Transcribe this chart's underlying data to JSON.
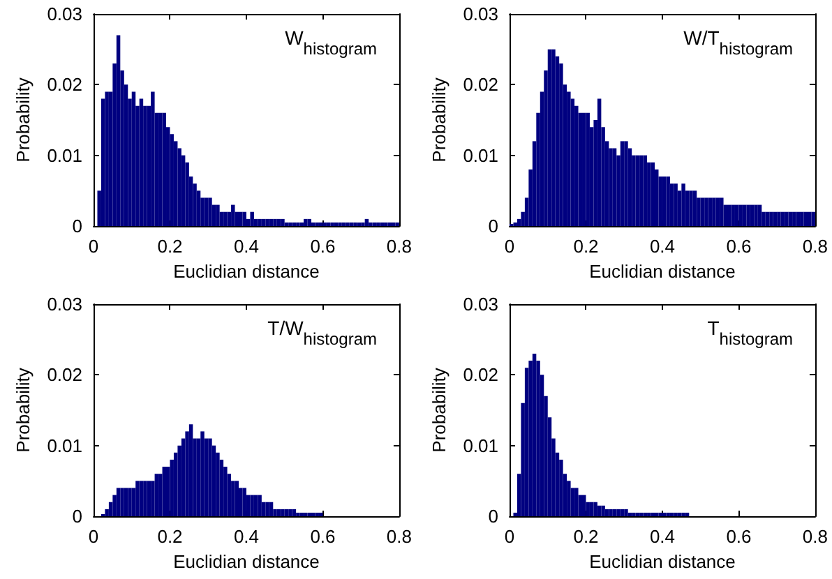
{
  "chart_data": [
    {
      "type": "histogram",
      "xlabel": "Euclidian distance",
      "ylabel": "Probability",
      "annotations": [
        "W$_{histogram}$"
      ],
      "color": "#000080",
      "xlim": [
        0,
        0.8
      ],
      "ylim": [
        0,
        0.03
      ],
      "xticks": [
        0,
        0.2,
        0.4,
        0.6,
        0.8
      ],
      "yticks": [
        0,
        0.01,
        0.02,
        0.03
      ],
      "bins": [
        0,
        0.01,
        0.02,
        0.03,
        0.04,
        0.05,
        0.06,
        0.07,
        0.08,
        0.09,
        0.1,
        0.11,
        0.12,
        0.13,
        0.14,
        0.15,
        0.16,
        0.17,
        0.18,
        0.19,
        0.2,
        0.21,
        0.22,
        0.23,
        0.24,
        0.25,
        0.26,
        0.27,
        0.28,
        0.29,
        0.3,
        0.31,
        0.32,
        0.33,
        0.34,
        0.35,
        0.36,
        0.37,
        0.38,
        0.39,
        0.4,
        0.41,
        0.42,
        0.43,
        0.44,
        0.45,
        0.46,
        0.47,
        0.48,
        0.49,
        0.5,
        0.51,
        0.52,
        0.53,
        0.54,
        0.55,
        0.56,
        0.57,
        0.58,
        0.59,
        0.6,
        0.61,
        0.62,
        0.63,
        0.64,
        0.65,
        0.66,
        0.67,
        0.68,
        0.69,
        0.7,
        0.71,
        0.72,
        0.73,
        0.74,
        0.75,
        0.76,
        0.77,
        0.78,
        0.79,
        0.8
      ],
      "values": [
        0,
        0.005,
        0.018,
        0.019,
        0.019,
        0.023,
        0.027,
        0.022,
        0.02,
        0.018,
        0.019,
        0.017,
        0.018,
        0.017,
        0.017,
        0.019,
        0.016,
        0.016,
        0.016,
        0.014,
        0.013,
        0.012,
        0.011,
        0.01,
        0.009,
        0.007,
        0.006,
        0.005,
        0.004,
        0.004,
        0.004,
        0.003,
        0.003,
        0.002,
        0.002,
        0.002,
        0.003,
        0.002,
        0.002,
        0.002,
        0.001,
        0.002,
        0.001,
        0.001,
        0.001,
        0.001,
        0.001,
        0.001,
        0.001,
        0.001,
        0.0005,
        0.0005,
        0.0005,
        0.0005,
        0.0005,
        0.001,
        0.001,
        0.0005,
        0.0005,
        0.0005,
        0.0005,
        0.0005,
        0.0005,
        0.0005,
        0.0005,
        0.0005,
        0.0005,
        0.0005,
        0.0005,
        0.0005,
        0.0005,
        0.001,
        0.0005,
        0.0005,
        0.0005,
        0.0005,
        0.0005,
        0.0005,
        0.0005,
        0.0005
      ]
    },
    {
      "type": "histogram",
      "xlabel": "Euclidian distance",
      "ylabel": "Probability",
      "annotations": [
        "W/T$_{histogram}$"
      ],
      "color": "#000080",
      "xlim": [
        0,
        0.8
      ],
      "ylim": [
        0,
        0.03
      ],
      "xticks": [
        0,
        0.2,
        0.4,
        0.6,
        0.8
      ],
      "yticks": [
        0,
        0.01,
        0.02,
        0.03
      ],
      "bins": [
        0,
        0.01,
        0.02,
        0.03,
        0.04,
        0.05,
        0.06,
        0.07,
        0.08,
        0.09,
        0.1,
        0.11,
        0.12,
        0.13,
        0.14,
        0.15,
        0.16,
        0.17,
        0.18,
        0.19,
        0.2,
        0.21,
        0.22,
        0.23,
        0.24,
        0.25,
        0.26,
        0.27,
        0.28,
        0.29,
        0.3,
        0.31,
        0.32,
        0.33,
        0.34,
        0.35,
        0.36,
        0.37,
        0.38,
        0.39,
        0.4,
        0.41,
        0.42,
        0.43,
        0.44,
        0.45,
        0.46,
        0.47,
        0.48,
        0.49,
        0.5,
        0.51,
        0.52,
        0.53,
        0.54,
        0.55,
        0.56,
        0.57,
        0.58,
        0.59,
        0.6,
        0.61,
        0.62,
        0.63,
        0.64,
        0.65,
        0.66,
        0.67,
        0.68,
        0.69,
        0.7,
        0.71,
        0.72,
        0.73,
        0.74,
        0.75,
        0.76,
        0.77,
        0.78,
        0.79,
        0.8
      ],
      "values": [
        0.0003,
        0.0005,
        0.001,
        0.002,
        0.004,
        0.008,
        0.012,
        0.016,
        0.019,
        0.022,
        0.025,
        0.025,
        0.024,
        0.023,
        0.02,
        0.019,
        0.018,
        0.017,
        0.016,
        0.016,
        0.016,
        0.014,
        0.015,
        0.018,
        0.014,
        0.012,
        0.011,
        0.011,
        0.01,
        0.012,
        0.012,
        0.011,
        0.01,
        0.01,
        0.01,
        0.01,
        0.009,
        0.009,
        0.008,
        0.007,
        0.007,
        0.007,
        0.006,
        0.006,
        0.005,
        0.006,
        0.005,
        0.005,
        0.005,
        0.004,
        0.004,
        0.004,
        0.004,
        0.004,
        0.004,
        0.004,
        0.003,
        0.003,
        0.003,
        0.003,
        0.003,
        0.003,
        0.003,
        0.003,
        0.003,
        0.003,
        0.002,
        0.002,
        0.002,
        0.002,
        0.002,
        0.002,
        0.002,
        0.002,
        0.002,
        0.002,
        0.002,
        0.002,
        0.002,
        0.002
      ]
    },
    {
      "type": "histogram",
      "xlabel": "Euclidian distance",
      "ylabel": "Probability",
      "annotations": [
        "T/W$_{histogram}$"
      ],
      "color": "#000080",
      "xlim": [
        0,
        0.8
      ],
      "ylim": [
        0,
        0.03
      ],
      "xticks": [
        0,
        0.2,
        0.4,
        0.6,
        0.8
      ],
      "yticks": [
        0,
        0.01,
        0.02,
        0.03
      ],
      "bins": [
        0,
        0.01,
        0.02,
        0.03,
        0.04,
        0.05,
        0.06,
        0.07,
        0.08,
        0.09,
        0.1,
        0.11,
        0.12,
        0.13,
        0.14,
        0.15,
        0.16,
        0.17,
        0.18,
        0.19,
        0.2,
        0.21,
        0.22,
        0.23,
        0.24,
        0.25,
        0.26,
        0.27,
        0.28,
        0.29,
        0.3,
        0.31,
        0.32,
        0.33,
        0.34,
        0.35,
        0.36,
        0.37,
        0.38,
        0.39,
        0.4,
        0.41,
        0.42,
        0.43,
        0.44,
        0.45,
        0.46,
        0.47,
        0.48,
        0.49,
        0.5,
        0.51,
        0.52,
        0.53,
        0.54,
        0.55,
        0.56,
        0.57,
        0.58,
        0.59,
        0.6,
        0.61,
        0.62,
        0.63,
        0.64,
        0.65,
        0.66,
        0.67,
        0.68,
        0.69,
        0.7,
        0.71,
        0.72,
        0.73,
        0.74,
        0.75,
        0.76,
        0.77,
        0.78,
        0.79,
        0.8
      ],
      "values": [
        0,
        0,
        0.0003,
        0.001,
        0.002,
        0.003,
        0.004,
        0.004,
        0.004,
        0.004,
        0.004,
        0.005,
        0.005,
        0.005,
        0.005,
        0.005,
        0.006,
        0.006,
        0.007,
        0.007,
        0.008,
        0.009,
        0.01,
        0.011,
        0.012,
        0.013,
        0.011,
        0.011,
        0.012,
        0.011,
        0.011,
        0.01,
        0.009,
        0.008,
        0.007,
        0.006,
        0.005,
        0.005,
        0.004,
        0.004,
        0.003,
        0.003,
        0.003,
        0.003,
        0.002,
        0.002,
        0.002,
        0.001,
        0.001,
        0.001,
        0.001,
        0.001,
        0.001,
        0.0005,
        0.0005,
        0.0005,
        0.0005,
        0.0005,
        0.0005,
        0.0005,
        0,
        0,
        0,
        0,
        0,
        0,
        0,
        0,
        0,
        0,
        0,
        0,
        0,
        0,
        0,
        0,
        0,
        0,
        0,
        0
      ]
    },
    {
      "type": "histogram",
      "xlabel": "Euclidian distance",
      "ylabel": "Probability",
      "annotations": [
        "T$_{histogram}$"
      ],
      "color": "#000080",
      "xlim": [
        0,
        0.8
      ],
      "ylim": [
        0,
        0.03
      ],
      "xticks": [
        0,
        0.2,
        0.4,
        0.6,
        0.8
      ],
      "yticks": [
        0,
        0.01,
        0.02,
        0.03
      ],
      "bins": [
        0,
        0.01,
        0.02,
        0.03,
        0.04,
        0.05,
        0.06,
        0.07,
        0.08,
        0.09,
        0.1,
        0.11,
        0.12,
        0.13,
        0.14,
        0.15,
        0.16,
        0.17,
        0.18,
        0.19,
        0.2,
        0.21,
        0.22,
        0.23,
        0.24,
        0.25,
        0.26,
        0.27,
        0.28,
        0.29,
        0.3,
        0.31,
        0.32,
        0.33,
        0.34,
        0.35,
        0.36,
        0.37,
        0.38,
        0.39,
        0.4,
        0.41,
        0.42,
        0.43,
        0.44,
        0.45,
        0.46,
        0.47,
        0.48,
        0.49,
        0.5,
        0.51,
        0.52,
        0.53,
        0.54,
        0.55,
        0.56,
        0.57,
        0.58,
        0.59,
        0.6,
        0.61,
        0.62,
        0.63,
        0.64,
        0.65,
        0.66,
        0.67,
        0.68,
        0.69,
        0.7,
        0.71,
        0.72,
        0.73,
        0.74,
        0.75,
        0.76,
        0.77,
        0.78,
        0.79,
        0.8
      ],
      "values": [
        0,
        0.0005,
        0.006,
        0.016,
        0.021,
        0.022,
        0.023,
        0.022,
        0.02,
        0.017,
        0.014,
        0.011,
        0.009,
        0.008,
        0.006,
        0.005,
        0.004,
        0.004,
        0.003,
        0.003,
        0.002,
        0.002,
        0.002,
        0.0015,
        0.0015,
        0.001,
        0.001,
        0.001,
        0.001,
        0.001,
        0.001,
        0.0005,
        0.0005,
        0.0005,
        0.0005,
        0.0005,
        0.0005,
        0.0005,
        0.0005,
        0.0005,
        0.0005,
        0.0005,
        0.0005,
        0.0005,
        0.0005,
        0.0005,
        0.0005,
        0,
        0,
        0,
        0,
        0,
        0,
        0,
        0,
        0,
        0,
        0,
        0,
        0,
        0,
        0,
        0,
        0,
        0,
        0,
        0,
        0,
        0,
        0,
        0,
        0,
        0,
        0,
        0,
        0,
        0,
        0,
        0,
        0
      ]
    }
  ]
}
